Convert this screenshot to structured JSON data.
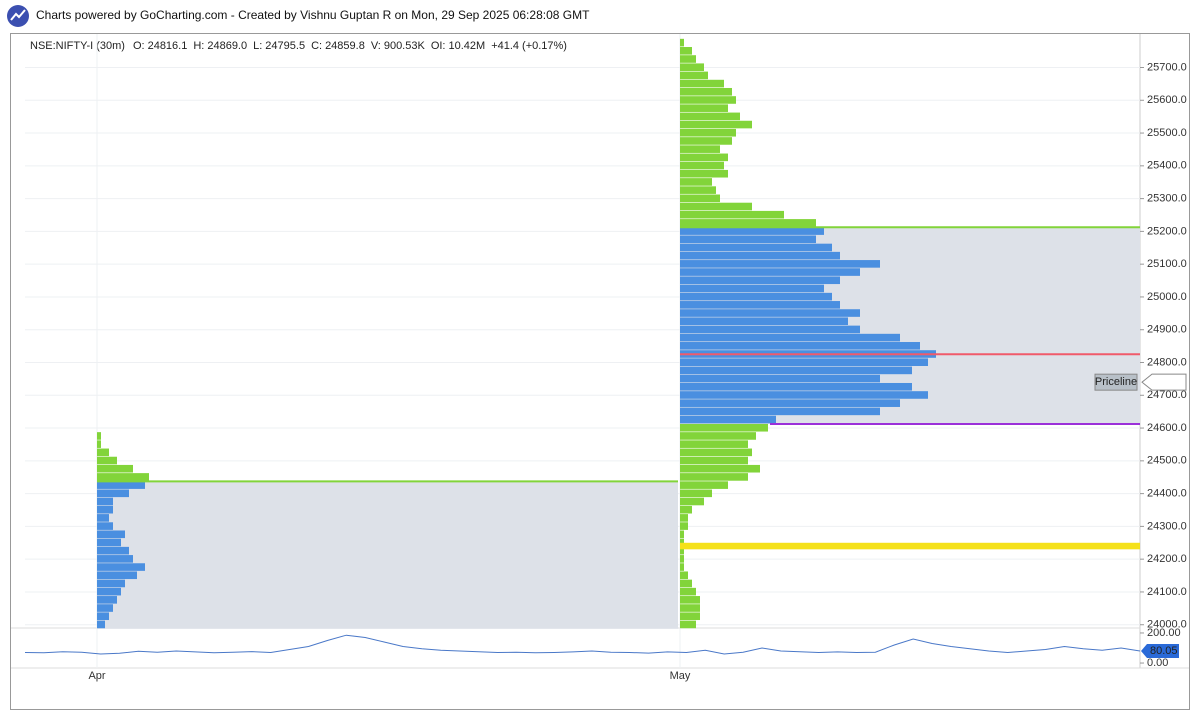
{
  "header": {
    "title": "Charts powered by GoCharting.com - Created by Vishnu Guptan R on Mon, 29 Sep 2025 06:28:08 GMT"
  },
  "chart_data": {
    "type": "market_profile",
    "symbol": "NSE:NIFTY-I (30m)",
    "info": [
      [
        "O:",
        "24816.1"
      ],
      [
        "H:",
        "24869.0"
      ],
      [
        "L:",
        "24795.5"
      ],
      [
        "C:",
        "24859.8"
      ],
      [
        "V:",
        "900.53K"
      ],
      [
        "OI:",
        "10.42M"
      ],
      [
        "+41.4",
        "(+0.17%)"
      ]
    ],
    "ylim": [
      23990,
      25790
    ],
    "yticks": [
      {
        "value": 24000,
        "label": "24000.0"
      },
      {
        "value": 24100,
        "label": "24100.0"
      },
      {
        "value": 24200,
        "label": "24200.0"
      },
      {
        "value": 24300,
        "label": "24300.0"
      },
      {
        "value": 24400,
        "label": "24400.0"
      },
      {
        "value": 24500,
        "label": "24500.0"
      },
      {
        "value": 24600,
        "label": "24600.0"
      },
      {
        "value": 24700,
        "label": "24700.0"
      },
      {
        "value": 24800,
        "label": "24800.0"
      },
      {
        "value": 24900,
        "label": "24900.0"
      },
      {
        "value": 25000,
        "label": "25000.0"
      },
      {
        "value": 25100,
        "label": "25100.0"
      },
      {
        "value": 25200,
        "label": "25200.0"
      },
      {
        "value": 25300,
        "label": "25300.0"
      },
      {
        "value": 25400,
        "label": "25400.0"
      },
      {
        "value": 25500,
        "label": "25500.0"
      },
      {
        "value": 25600,
        "label": "25600.0"
      },
      {
        "value": 25700,
        "label": "25700.0"
      }
    ],
    "grid": true,
    "x_labels": [
      "Apr",
      "May"
    ],
    "colors": {
      "value_area": "#4a8fe0",
      "outside": "#82d43a",
      "box": "#dde1e8",
      "poc": "#f05a6a",
      "vah": "#82d43a",
      "val": "#9b30d9",
      "zone": "#f5e11a"
    },
    "profiles": [
      {
        "prices": [
          24000,
          24025,
          24050,
          24075,
          24100,
          24125,
          24150,
          24175,
          24200,
          24225,
          24250,
          24275,
          24300,
          24325,
          24350,
          24375,
          24400,
          24425,
          24450,
          24475,
          24500,
          24525,
          24550,
          24575
        ],
        "tpo": [
          2,
          3,
          4,
          5,
          6,
          7,
          10,
          12,
          9,
          8,
          6,
          7,
          4,
          3,
          4,
          4,
          8,
          12,
          13,
          9,
          5,
          3,
          1,
          1
        ],
        "val": 24000,
        "vah": 24425
      },
      {
        "prices": [
          24000,
          24025,
          24050,
          24075,
          24100,
          24125,
          24150,
          24175,
          24200,
          24225,
          24250,
          24275,
          24300,
          24325,
          24350,
          24375,
          24400,
          24425,
          24450,
          24475,
          24500,
          24525,
          24550,
          24575,
          24600,
          24625,
          24650,
          24675,
          24700,
          24725,
          24750,
          24775,
          24800,
          24825,
          24850,
          24875,
          24900,
          24925,
          24950,
          24975,
          25000,
          25025,
          25050,
          25075,
          25100,
          25125,
          25150,
          25175,
          25200,
          25225,
          25250,
          25275,
          25300,
          25325,
          25350,
          25375,
          25400,
          25425,
          25450,
          25475,
          25500,
          25525,
          25550,
          25575,
          25600,
          25625,
          25650,
          25675,
          25700,
          25725,
          25750,
          25775
        ],
        "tpo": [
          4,
          5,
          5,
          5,
          4,
          3,
          2,
          1,
          1,
          1,
          1,
          1,
          2,
          2,
          3,
          6,
          8,
          12,
          17,
          20,
          17,
          18,
          17,
          19,
          22,
          24,
          50,
          55,
          62,
          58,
          50,
          58,
          62,
          64,
          60,
          55,
          45,
          42,
          45,
          40,
          38,
          36,
          40,
          45,
          50,
          40,
          38,
          34,
          36,
          34,
          26,
          18,
          10,
          9,
          8,
          12,
          11,
          12,
          10,
          13,
          14,
          18,
          15,
          12,
          14,
          13,
          11,
          7,
          6,
          4,
          3,
          1
        ],
        "val": 24625,
        "vah": 25200,
        "poc": 24825,
        "zone": [
          24230,
          24250
        ]
      }
    ],
    "priceline": {
      "label": "Priceline",
      "value": 24740
    },
    "oscillator": {
      "type": "line",
      "color": "#4a78c8",
      "ylim": [
        -33,
        233
      ],
      "yticks": [
        {
          "value": 0,
          "label": "0.00"
        },
        {
          "value": 200,
          "label": "200.00"
        }
      ],
      "values": [
        70,
        68,
        75,
        72,
        60,
        65,
        78,
        72,
        80,
        74,
        68,
        72,
        76,
        70,
        90,
        110,
        150,
        185,
        170,
        140,
        110,
        95,
        85,
        80,
        75,
        70,
        72,
        68,
        70,
        74,
        80,
        72,
        70,
        66,
        74,
        70,
        85,
        60,
        72,
        100,
        80,
        75,
        70,
        74,
        70,
        72,
        120,
        160,
        130,
        110,
        95,
        80,
        70,
        80,
        90,
        110,
        95,
        85,
        100,
        80.05
      ],
      "last_value": 80.05
    }
  }
}
